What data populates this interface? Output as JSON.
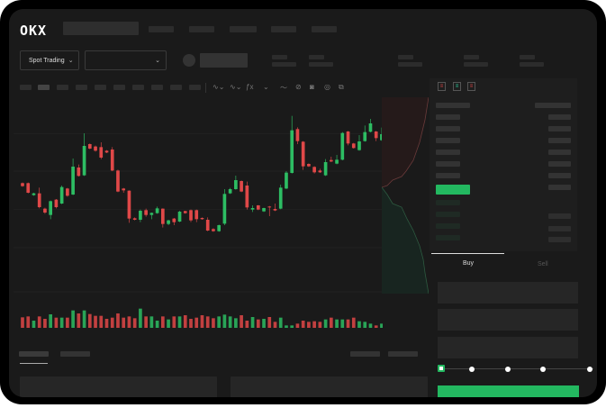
{
  "header": {
    "logo": "OKX"
  },
  "market": {
    "mode_select": "Spot Trading",
    "pair_select": ""
  },
  "trade": {
    "buy_label": "Buy",
    "sell_label": "Sell",
    "leverage_stops": [
      0,
      25,
      50,
      75,
      100
    ],
    "selected_stop": 0
  },
  "colors": {
    "up": "#2dbd63",
    "down": "#e04848",
    "accent": "#23b860",
    "background": "#1a1a1a"
  },
  "icons": [
    "chevron-down-icon",
    "indicator-icon",
    "line-tool-icon",
    "brush-icon",
    "camera-icon",
    "settings-icon",
    "fullscreen-icon",
    "orderbook-both-icon",
    "orderbook-bids-icon",
    "orderbook-asks-icon"
  ],
  "chart_data": {
    "type": "candlestick",
    "title": "",
    "xlabel": "",
    "ylabel": "",
    "grid": true,
    "candles": [
      [
        200,
        190,
        202,
        188
      ],
      [
        200,
        168,
        202,
        166
      ],
      [
        160,
        166,
        168,
        158
      ],
      [
        166,
        120,
        185,
        116
      ],
      [
        115,
        102,
        118,
        98
      ],
      [
        94,
        140,
        142,
        80
      ],
      [
        145,
        120,
        147,
        116
      ],
      [
        132,
        187,
        192,
        130
      ],
      [
        182,
        158,
        184,
        155
      ],
      [
        162,
        255,
        282,
        160
      ],
      [
        252,
        224,
        262,
        222
      ],
      [
        226,
        324,
        366,
        224
      ],
      [
        330,
        315,
        332,
        313
      ],
      [
        322,
        308,
        325,
        305
      ],
      [
        320,
        285,
        336,
        280
      ],
      [
        308,
        302,
        310,
        300
      ],
      [
        312,
        242,
        320,
        240
      ],
      [
        242,
        172,
        245,
        170
      ],
      [
        182,
        176,
        184,
        168
      ],
      [
        175,
        82,
        176,
        68
      ],
      [
        83,
        78,
        86,
        76
      ],
      [
        78,
        108,
        112,
        70
      ],
      [
        110,
        94,
        115,
        88
      ],
      [
        94,
        101,
        102,
        80
      ],
      [
        100,
        116,
        122,
        98
      ],
      [
        115,
        64,
        116,
        52
      ],
      [
        64,
        76,
        78,
        60
      ],
      [
        82,
        70,
        84,
        60
      ],
      [
        72,
        105,
        108,
        70
      ],
      [
        107,
        100,
        108,
        98
      ],
      [
        110,
        76,
        112,
        70
      ],
      [
        110,
        80,
        112,
        70
      ],
      [
        84,
        80,
        86,
        78
      ],
      [
        78,
        42,
        86,
        40
      ],
      [
        47,
        40,
        50,
        38
      ],
      [
        40,
        60,
        62,
        38
      ],
      [
        65,
        164,
        180,
        60
      ],
      [
        166,
        180,
        184,
        164
      ],
      [
        180,
        210,
        225,
        178
      ],
      [
        207,
        172,
        209,
        170
      ],
      [
        192,
        119,
        205,
        112
      ],
      [
        112,
        117,
        126,
        104
      ],
      [
        126,
        112,
        127,
        110
      ],
      [
        106,
        117,
        118,
        104
      ],
      [
        122,
        119,
        124,
        90
      ],
      [
        114,
        109,
        132,
        107
      ],
      [
        115,
        185,
        195,
        113
      ],
      [
        182,
        235,
        240,
        180
      ],
      [
        234,
        376,
        424,
        232
      ],
      [
        380,
        340,
        386,
        330
      ],
      [
        338,
        256,
        340,
        244
      ],
      [
        264,
        256,
        266,
        254
      ],
      [
        254,
        236,
        256,
        232
      ],
      [
        242,
        236,
        248,
        234
      ],
      [
        226,
        270,
        280,
        224
      ],
      [
        277,
        272,
        288,
        270
      ],
      [
        265,
        278,
        294,
        263
      ],
      [
        278,
        367,
        370,
        276
      ],
      [
        372,
        332,
        374,
        326
      ],
      [
        332,
        317,
        334,
        315
      ],
      [
        310,
        339,
        360,
        308
      ],
      [
        340,
        370,
        392,
        338
      ],
      [
        371,
        399,
        414,
        369
      ],
      [
        372,
        350,
        374,
        340
      ],
      [
        343,
        363,
        385,
        341
      ]
    ],
    "candle_fields": [
      "open",
      "close",
      "high",
      "low"
    ],
    "volumes": [
      35,
      38,
      24,
      38,
      30,
      45,
      34,
      34,
      34,
      58,
      48,
      58,
      46,
      40,
      40,
      30,
      34,
      48,
      34,
      38,
      32,
      64,
      38,
      38,
      24,
      38,
      28,
      38,
      38,
      42,
      30,
      34,
      42,
      38,
      32,
      38,
      44,
      38,
      32,
      42,
      24,
      36,
      28,
      30,
      36,
      20,
      34,
      8,
      8,
      14,
      24,
      20,
      22,
      20,
      28,
      34,
      28,
      28,
      28,
      34,
      22,
      20,
      14,
      8,
      14
    ]
  }
}
